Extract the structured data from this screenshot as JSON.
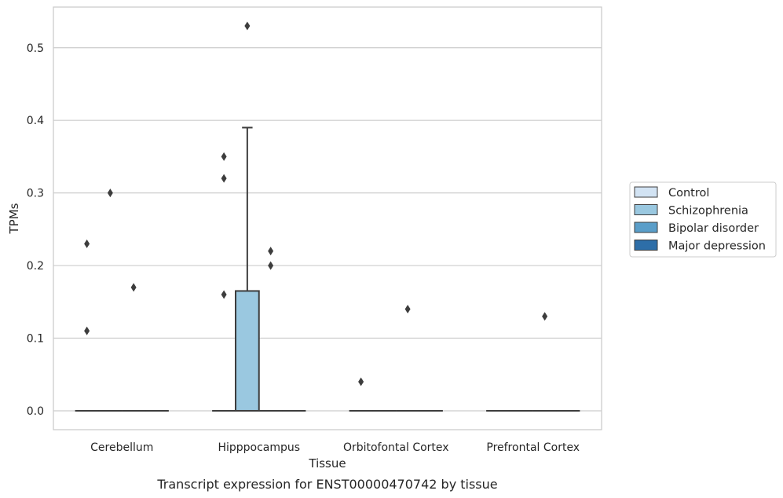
{
  "chart_data": {
    "type": "box",
    "title": "",
    "caption": "Transcript expression for ENST00000470742 by tissue",
    "xlabel": "Tissue",
    "ylabel": "TPMs",
    "ylim": [
      -0.026,
      0.556
    ],
    "yticks": [
      0.0,
      0.1,
      0.2,
      0.3,
      0.4,
      0.5
    ],
    "ytick_labels": [
      "0.0",
      "0.1",
      "0.2",
      "0.3",
      "0.4",
      "0.5"
    ],
    "categories": [
      "Cerebellum",
      "Hipppocampus",
      "Orbitofontal Cortex",
      "Prefrontal Cortex"
    ],
    "grid": true,
    "legend_position": "right",
    "series": [
      {
        "name": "Control",
        "color": "#d2e3f3"
      },
      {
        "name": "Schizophrenia",
        "color": "#9ac8e0"
      },
      {
        "name": "Bipolar disorder",
        "color": "#5a9ec9"
      },
      {
        "name": "Major depression",
        "color": "#2d6ea8"
      }
    ],
    "boxes": [
      {
        "category": 0,
        "series": 0,
        "q1": 0,
        "median": 0,
        "q3": 0,
        "whisker_low": 0,
        "whisker_high": 0,
        "outliers": [
          0.23,
          0.11
        ]
      },
      {
        "category": 0,
        "series": 1,
        "q1": 0,
        "median": 0,
        "q3": 0,
        "whisker_low": 0,
        "whisker_high": 0,
        "outliers": [
          0.3
        ]
      },
      {
        "category": 0,
        "series": 2,
        "q1": 0,
        "median": 0,
        "q3": 0,
        "whisker_low": 0,
        "whisker_high": 0,
        "outliers": [
          0.17
        ]
      },
      {
        "category": 0,
        "series": 3,
        "q1": 0,
        "median": 0,
        "q3": 0,
        "whisker_low": 0,
        "whisker_high": 0,
        "outliers": []
      },
      {
        "category": 1,
        "series": 0,
        "q1": 0,
        "median": 0,
        "q3": 0,
        "whisker_low": 0,
        "whisker_high": 0,
        "outliers": [
          0.35,
          0.32,
          0.16
        ]
      },
      {
        "category": 1,
        "series": 1,
        "q1": 0,
        "median": 0,
        "q3": 0.165,
        "whisker_low": 0,
        "whisker_high": 0.39,
        "outliers": [
          0.53
        ]
      },
      {
        "category": 1,
        "series": 2,
        "q1": 0,
        "median": 0,
        "q3": 0,
        "whisker_low": 0,
        "whisker_high": 0,
        "outliers": [
          0.22,
          0.2
        ]
      },
      {
        "category": 1,
        "series": 3,
        "q1": 0,
        "median": 0,
        "q3": 0,
        "whisker_low": 0,
        "whisker_high": 0,
        "outliers": []
      },
      {
        "category": 2,
        "series": 0,
        "q1": 0,
        "median": 0,
        "q3": 0,
        "whisker_low": 0,
        "whisker_high": 0,
        "outliers": [
          0.04
        ]
      },
      {
        "category": 2,
        "series": 1,
        "q1": 0,
        "median": 0,
        "q3": 0,
        "whisker_low": 0,
        "whisker_high": 0,
        "outliers": []
      },
      {
        "category": 2,
        "series": 2,
        "q1": 0,
        "median": 0,
        "q3": 0,
        "whisker_low": 0,
        "whisker_high": 0,
        "outliers": [
          0.14
        ]
      },
      {
        "category": 2,
        "series": 3,
        "q1": 0,
        "median": 0,
        "q3": 0,
        "whisker_low": 0,
        "whisker_high": 0,
        "outliers": []
      },
      {
        "category": 3,
        "series": 0,
        "q1": 0,
        "median": 0,
        "q3": 0,
        "whisker_low": 0,
        "whisker_high": 0,
        "outliers": []
      },
      {
        "category": 3,
        "series": 1,
        "q1": 0,
        "median": 0,
        "q3": 0,
        "whisker_low": 0,
        "whisker_high": 0,
        "outliers": []
      },
      {
        "category": 3,
        "series": 2,
        "q1": 0,
        "median": 0,
        "q3": 0,
        "whisker_low": 0,
        "whisker_high": 0,
        "outliers": [
          0.13
        ]
      },
      {
        "category": 3,
        "series": 3,
        "q1": 0,
        "median": 0,
        "q3": 0,
        "whisker_low": 0,
        "whisker_high": 0,
        "outliers": []
      }
    ]
  }
}
